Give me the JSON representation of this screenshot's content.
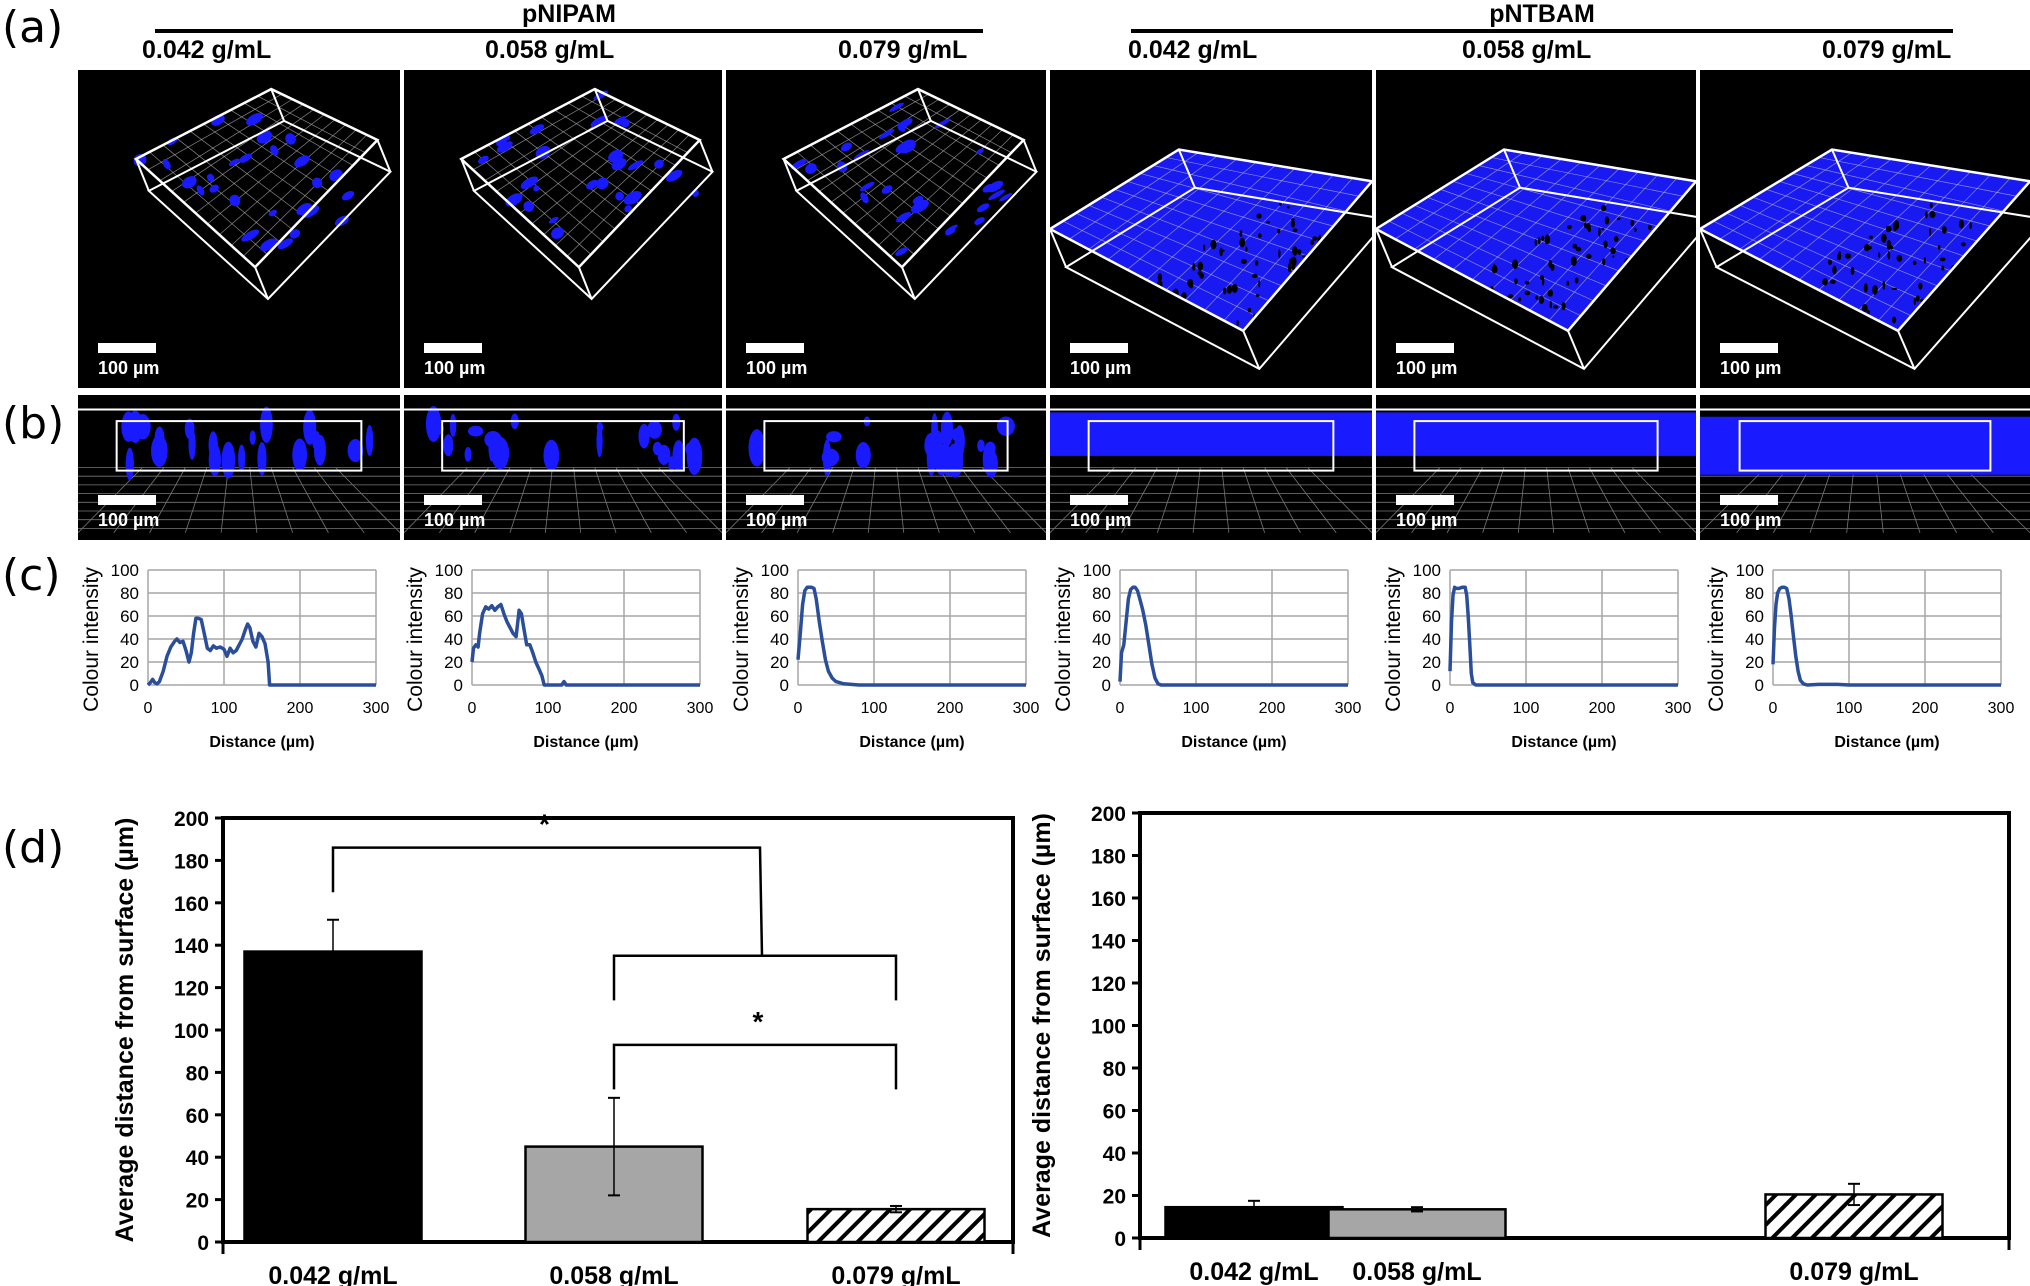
{
  "figure": {
    "panel_labels": [
      "(a)",
      "(b)",
      "(c)",
      "(d)"
    ],
    "groups": [
      {
        "name": "pNIPAM",
        "concentrations": [
          "0.042 g/mL",
          "0.058 g/mL",
          "0.079 g/mL"
        ]
      },
      {
        "name": "pNTBAM",
        "concentrations": [
          "0.042 g/mL",
          "0.058 g/mL",
          "0.079 g/mL"
        ]
      }
    ],
    "scale_bar_label": "100 µm",
    "colors": {
      "signal_blue": "#1a1aff",
      "line_blue": "#2a4e9a",
      "grid_gray": "#a6a6a6",
      "bar_black": "#000000",
      "bar_gray": "#a6a6a6",
      "bar_hatch": "#ffffff"
    },
    "microscopy": {
      "row_a_description": "3D confocal reconstructions of cell distribution within each hydrogel",
      "row_b_description": "Side views of the 3D reconstructions",
      "panels_a": [
        {
          "group": "pNIPAM",
          "conc": "0.042 g/mL",
          "coverage": "sparse"
        },
        {
          "group": "pNIPAM",
          "conc": "0.058 g/mL",
          "coverage": "sparse"
        },
        {
          "group": "pNIPAM",
          "conc": "0.079 g/mL",
          "coverage": "sparse"
        },
        {
          "group": "pNTBAM",
          "conc": "0.042 g/mL",
          "coverage": "dense"
        },
        {
          "group": "pNTBAM",
          "conc": "0.058 g/mL",
          "coverage": "dense"
        },
        {
          "group": "pNTBAM",
          "conc": "0.079 g/mL",
          "coverage": "dense"
        }
      ]
    }
  },
  "chart_data": [
    {
      "type": "line",
      "id": "c1",
      "group": "pNIPAM",
      "conc": "0.042 g/mL",
      "xlabel": "Distance (µm)",
      "ylabel": "Colour intensity",
      "xlim": [
        0,
        300
      ],
      "ylim": [
        0,
        100
      ],
      "xticks": [
        0,
        100,
        200,
        300
      ],
      "yticks": [
        0,
        20,
        40,
        60,
        80,
        100
      ],
      "grid": true,
      "x": [
        0,
        3,
        6,
        9,
        12,
        15,
        20,
        25,
        30,
        35,
        38,
        42,
        46,
        50,
        54,
        57,
        60,
        63,
        66,
        70,
        74,
        78,
        82,
        86,
        90,
        95,
        100,
        104,
        108,
        112,
        116,
        120,
        124,
        128,
        131,
        134,
        138,
        142,
        146,
        150,
        154,
        158,
        160,
        165,
        200,
        300
      ],
      "y": [
        0,
        2,
        5,
        2,
        1,
        3,
        12,
        25,
        33,
        38,
        40,
        37,
        38,
        30,
        20,
        28,
        45,
        58,
        58,
        57,
        45,
        32,
        30,
        34,
        32,
        33,
        31,
        25,
        32,
        28,
        30,
        35,
        40,
        48,
        53,
        50,
        38,
        33,
        45,
        42,
        36,
        20,
        0,
        0,
        0,
        0
      ]
    },
    {
      "type": "line",
      "id": "c2",
      "group": "pNIPAM",
      "conc": "0.058 g/mL",
      "xlabel": "Distance (µm)",
      "ylabel": "Colour intensity",
      "xlim": [
        0,
        300
      ],
      "ylim": [
        0,
        100
      ],
      "xticks": [
        0,
        100,
        200,
        300
      ],
      "yticks": [
        0,
        20,
        40,
        60,
        80,
        100
      ],
      "grid": true,
      "x": [
        0,
        2,
        5,
        8,
        10,
        14,
        18,
        22,
        26,
        30,
        34,
        38,
        42,
        46,
        50,
        54,
        58,
        62,
        65,
        68,
        72,
        76,
        80,
        84,
        88,
        92,
        95,
        100,
        118,
        121,
        124,
        200,
        300
      ],
      "y": [
        20,
        32,
        35,
        33,
        45,
        62,
        68,
        66,
        69,
        65,
        68,
        70,
        62,
        55,
        50,
        45,
        42,
        65,
        62,
        50,
        35,
        35,
        28,
        20,
        14,
        8,
        0,
        0,
        0,
        3,
        0,
        0,
        0
      ]
    },
    {
      "type": "line",
      "id": "c3",
      "group": "pNIPAM",
      "conc": "0.079 g/mL",
      "xlabel": "Distance (µm)",
      "ylabel": "Colour intensity",
      "xlim": [
        0,
        300
      ],
      "ylim": [
        0,
        100
      ],
      "xticks": [
        0,
        100,
        200,
        300
      ],
      "yticks": [
        0,
        20,
        40,
        60,
        80,
        100
      ],
      "grid": true,
      "x": [
        0,
        3,
        6,
        9,
        12,
        15,
        18,
        21,
        24,
        28,
        32,
        36,
        40,
        45,
        50,
        55,
        60,
        70,
        80,
        100,
        200,
        300
      ],
      "y": [
        22,
        45,
        70,
        82,
        85,
        85,
        85,
        84,
        75,
        55,
        38,
        22,
        12,
        6,
        3,
        2,
        1,
        0.5,
        0,
        0,
        0,
        0
      ]
    },
    {
      "type": "line",
      "id": "c4",
      "group": "pNTBAM",
      "conc": "0.042 g/mL",
      "xlabel": "Distance (µm)",
      "ylabel": "Colour intensity",
      "xlim": [
        0,
        300
      ],
      "ylim": [
        0,
        100
      ],
      "xticks": [
        0,
        100,
        200,
        300
      ],
      "yticks": [
        0,
        20,
        40,
        60,
        80,
        100
      ],
      "grid": true,
      "x": [
        0,
        2,
        5,
        8,
        11,
        14,
        17,
        20,
        23,
        26,
        30,
        34,
        38,
        42,
        46,
        50,
        54,
        60,
        100,
        200,
        300
      ],
      "y": [
        3,
        28,
        35,
        55,
        75,
        83,
        85,
        85,
        82,
        75,
        65,
        52,
        35,
        18,
        6,
        1,
        0,
        0,
        0,
        0,
        0
      ]
    },
    {
      "type": "line",
      "id": "c5",
      "group": "pNTBAM",
      "conc": "0.058 g/mL",
      "xlabel": "Distance (µm)",
      "ylabel": "Colour intensity",
      "xlim": [
        0,
        300
      ],
      "ylim": [
        0,
        100
      ],
      "xticks": [
        0,
        100,
        200,
        300
      ],
      "yticks": [
        0,
        20,
        40,
        60,
        80,
        100
      ],
      "grid": true,
      "x": [
        0,
        2,
        4,
        6,
        8,
        12,
        16,
        20,
        22,
        24,
        26,
        28,
        30,
        34,
        40,
        100,
        200,
        300
      ],
      "y": [
        12,
        55,
        78,
        85,
        84,
        84,
        85,
        85,
        78,
        60,
        35,
        10,
        2,
        0,
        0,
        0,
        0,
        0
      ]
    },
    {
      "type": "line",
      "id": "c6",
      "group": "pNTBAM",
      "conc": "0.079 g/mL",
      "xlabel": "Distance (µm)",
      "ylabel": "Colour intensity",
      "xlim": [
        0,
        300
      ],
      "ylim": [
        0,
        100
      ],
      "xticks": [
        0,
        100,
        200,
        300
      ],
      "yticks": [
        0,
        20,
        40,
        60,
        80,
        100
      ],
      "grid": true,
      "x": [
        0,
        2,
        4,
        6,
        9,
        12,
        15,
        18,
        21,
        24,
        27,
        30,
        33,
        36,
        40,
        45,
        60,
        85,
        100,
        200,
        300
      ],
      "y": [
        18,
        50,
        70,
        80,
        84,
        85,
        85,
        84,
        75,
        60,
        42,
        25,
        12,
        4,
        1,
        0,
        0.5,
        0.5,
        0,
        0,
        0
      ]
    },
    {
      "type": "bar",
      "id": "d1",
      "group": "pNIPAM",
      "categories": [
        "0.042 g/mL",
        "0.058 g/mL",
        "0.079 g/mL"
      ],
      "values": [
        137,
        45,
        15.5
      ],
      "errors": [
        15,
        23,
        1.5
      ],
      "fills": [
        "solid-black",
        "solid-gray",
        "diagonal-hatch"
      ],
      "ylabel": "Average distance from surface (µm)",
      "ylim": [
        0,
        200
      ],
      "yticks": [
        0,
        20,
        40,
        60,
        80,
        100,
        120,
        140,
        160,
        180,
        200
      ],
      "grid": false,
      "significance": [
        {
          "label": "*",
          "from": "0.042 g/mL",
          "to": "0.058 g/mL + 0.079 g/mL",
          "level": 186,
          "left_drop": 165,
          "right_drop": 135
        },
        {
          "label": "*",
          "from": "0.058 g/mL",
          "to": "0.079 g/mL",
          "level": 135,
          "left_drop": 114,
          "right_drop": 114,
          "inner": true
        },
        {
          "label": "*",
          "from": "0.058 g/mL",
          "to": "0.079 g/mL",
          "level": 93,
          "left_drop": 72,
          "right_drop": 72
        }
      ]
    },
    {
      "type": "bar",
      "id": "d2",
      "group": "pNTBAM",
      "categories": [
        "0.042 g/mL",
        "0.058 g/mL",
        "0.079 g/mL"
      ],
      "values": [
        14.5,
        13.5,
        20.5
      ],
      "errors": [
        3,
        1,
        5
      ],
      "fills": [
        "solid-black",
        "solid-gray",
        "diagonal-hatch"
      ],
      "ylabel": "Average distance from surface (µm)",
      "ylim": [
        0,
        200
      ],
      "yticks": [
        0,
        20,
        40,
        60,
        80,
        100,
        120,
        140,
        160,
        180,
        200
      ],
      "grid": false,
      "significance": []
    }
  ]
}
